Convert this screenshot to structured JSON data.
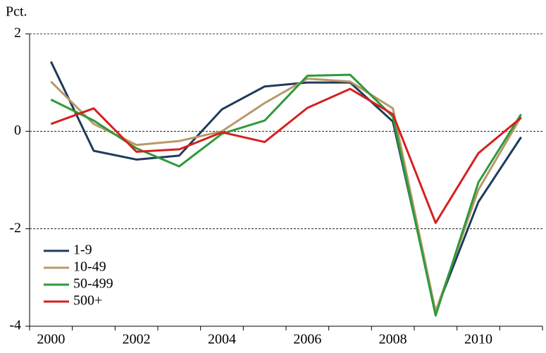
{
  "chart_data": {
    "type": "line",
    "ylabel": "Pct.",
    "categories": [
      "2000",
      null,
      "2002",
      null,
      "2004",
      null,
      "2006",
      null,
      "2008",
      null,
      "2010",
      null
    ],
    "series": [
      {
        "name": "1-9",
        "color": "#1f3b5c",
        "values": [
          1.43,
          -0.4,
          -0.58,
          -0.5,
          0.45,
          0.92,
          1.0,
          1.0,
          0.2,
          -3.7,
          -1.45,
          -0.12
        ]
      },
      {
        "name": "10-49",
        "color": "#b8996a",
        "values": [
          1.02,
          0.15,
          -0.28,
          -0.2,
          0.0,
          0.58,
          1.08,
          1.02,
          0.47,
          -3.7,
          -1.2,
          0.3
        ]
      },
      {
        "name": "50-499",
        "color": "#2e9a3a",
        "values": [
          0.65,
          0.22,
          -0.35,
          -0.72,
          -0.05,
          0.22,
          1.14,
          1.16,
          0.3,
          -3.78,
          -1.05,
          0.35
        ]
      },
      {
        "name": "500+",
        "color": "#d61f1f",
        "values": [
          0.15,
          0.47,
          -0.42,
          -0.37,
          -0.02,
          -0.22,
          0.48,
          0.87,
          0.35,
          -1.88,
          -0.45,
          0.28
        ]
      }
    ],
    "ylim": [
      -4,
      2
    ],
    "yticks": [
      -4,
      -2,
      0,
      2
    ],
    "grid": true,
    "legend": "lower-left"
  }
}
